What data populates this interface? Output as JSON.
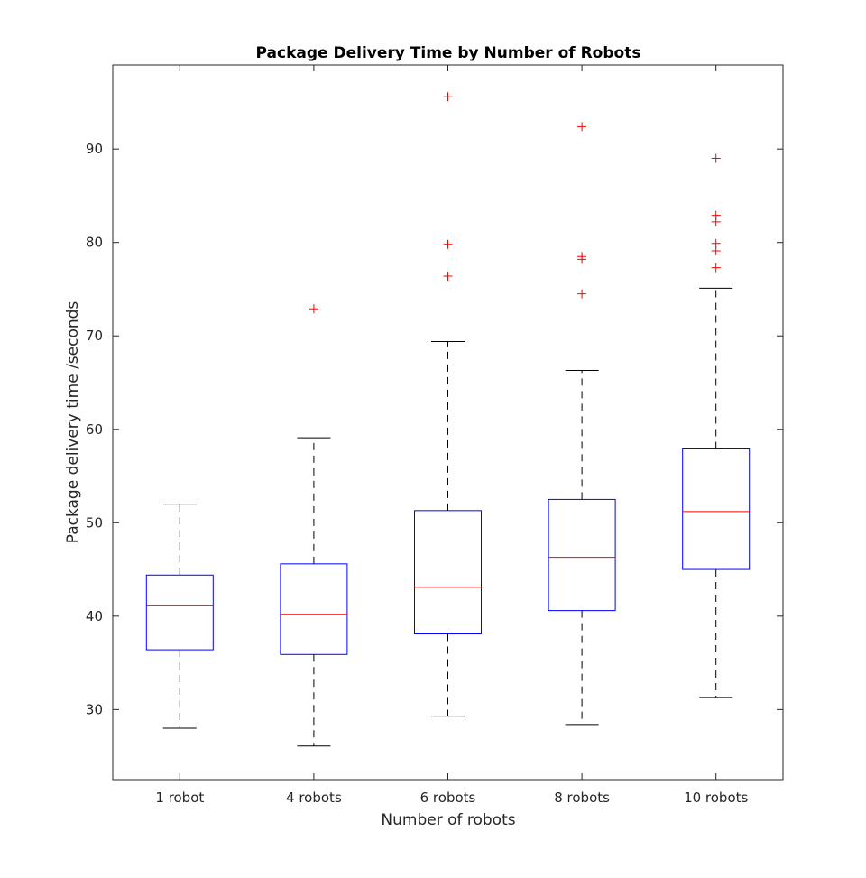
{
  "chart_data": {
    "type": "box",
    "title": "Package Delivery Time by Number of Robots",
    "xlabel": "Number of robots",
    "ylabel": "Package delivery time /seconds",
    "ylim": [
      22.5,
      99
    ],
    "yticks": [
      30,
      40,
      50,
      60,
      70,
      80,
      90
    ],
    "grid": false,
    "colors": {
      "box": "#0000ff",
      "median": "#ff0000",
      "outlier": "#ff0000",
      "whisker": "#000000"
    },
    "categories": [
      "1 robot",
      "4 robots",
      "6 robots",
      "8 robots",
      "10 robots"
    ],
    "boxes": [
      {
        "whisker_low": 28.0,
        "q1": 36.4,
        "median": 41.1,
        "q3": 44.4,
        "whisker_high": 52.0,
        "outliers": []
      },
      {
        "whisker_low": 26.1,
        "q1": 35.9,
        "median": 40.2,
        "q3": 45.6,
        "whisker_high": 59.1,
        "outliers": [
          72.9
        ]
      },
      {
        "whisker_low": 29.3,
        "q1": 38.1,
        "median": 43.1,
        "q3": 51.3,
        "whisker_high": 69.4,
        "outliers": [
          76.4,
          79.8,
          95.6
        ]
      },
      {
        "whisker_low": 28.4,
        "q1": 40.6,
        "median": 46.3,
        "q3": 52.5,
        "whisker_high": 66.3,
        "outliers": [
          74.5,
          78.2,
          78.5,
          92.4
        ]
      },
      {
        "whisker_low": 31.3,
        "q1": 45.0,
        "median": 51.2,
        "q3": 57.9,
        "whisker_high": 75.1,
        "outliers": [
          77.3,
          79.1,
          79.9,
          82.2,
          82.9,
          89.0
        ]
      }
    ]
  }
}
